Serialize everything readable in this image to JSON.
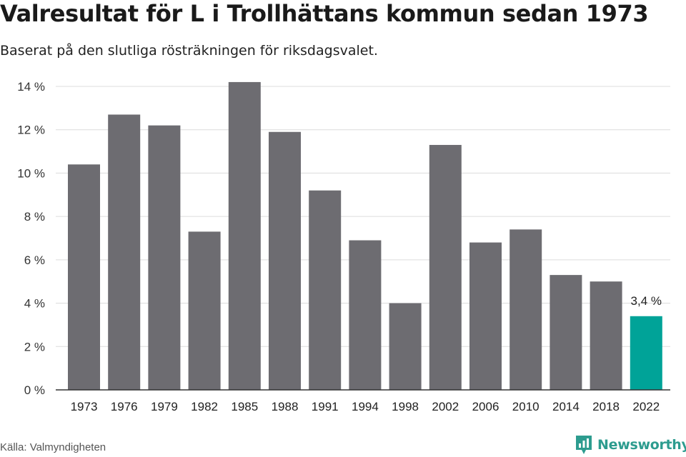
{
  "title": "Valresultat för L i Trollhättans kommun sedan 1973",
  "subtitle": "Baserat på den slutliga rösträkningen för riksdagsvalet.",
  "source": "Källa: Valmyndigheten",
  "brand": {
    "name": "Newsworthy",
    "logo_icon": "newsworthy-logo-icon",
    "color": "#2d9c8f"
  },
  "chart_data": {
    "type": "bar",
    "categories": [
      "1973",
      "1976",
      "1979",
      "1982",
      "1985",
      "1988",
      "1991",
      "1994",
      "1998",
      "2002",
      "2006",
      "2010",
      "2014",
      "2018",
      "2022"
    ],
    "values": [
      10.4,
      12.7,
      12.2,
      7.3,
      14.2,
      11.9,
      9.2,
      6.9,
      4.0,
      11.3,
      6.8,
      7.4,
      5.3,
      5.0,
      3.4
    ],
    "y_ticks": [
      0,
      2,
      4,
      6,
      8,
      10,
      12,
      14
    ],
    "y_tick_labels": [
      "0 %",
      "2 %",
      "4 %",
      "6 %",
      "8 %",
      "10 %",
      "12 %",
      "14 %"
    ],
    "ylim": [
      0,
      14
    ],
    "grid": true,
    "bar_color": "#6d6c71",
    "highlight_color": "#00a398",
    "highlight_index": 14,
    "annotations": [
      {
        "category": "2022",
        "text": "3,4 %"
      }
    ]
  }
}
